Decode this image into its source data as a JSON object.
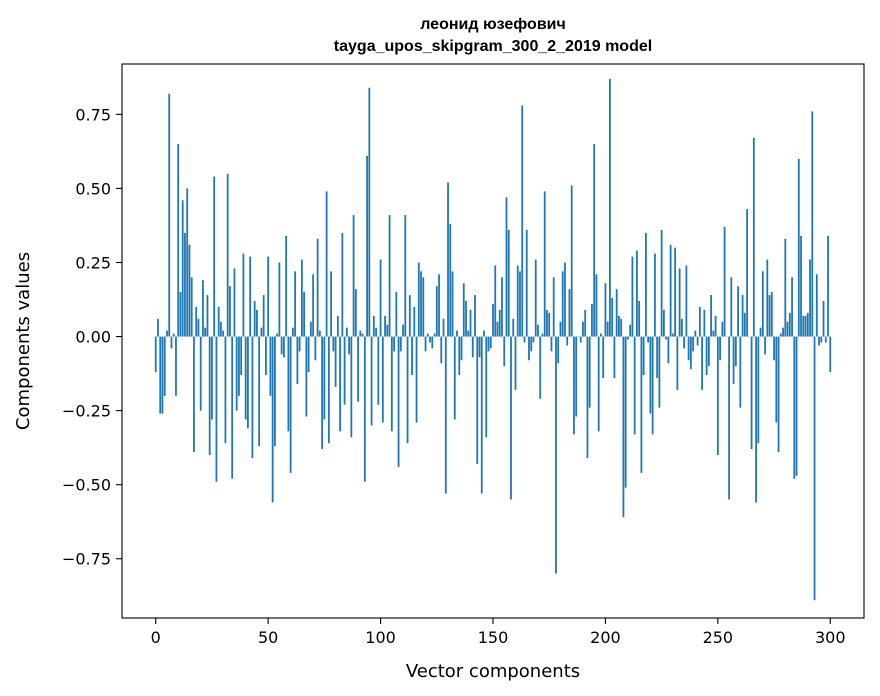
{
  "chart_data": {
    "type": "bar",
    "title_line1": "леонид юзефович",
    "title_line2": "tayga_upos_skipgram_300_2_2019 model",
    "xlabel": "Vector components",
    "ylabel": "Components values",
    "xlim": [
      -15,
      315
    ],
    "ylim": [
      -0.95,
      0.92
    ],
    "x_ticks": [
      0,
      50,
      100,
      150,
      200,
      250,
      300
    ],
    "x_tick_labels": [
      "0",
      "50",
      "100",
      "150",
      "200",
      "250",
      "300"
    ],
    "y_ticks": [
      -0.75,
      -0.5,
      -0.25,
      0.0,
      0.25,
      0.5,
      0.75
    ],
    "y_tick_labels": [
      "−0.75",
      "−0.50",
      "−0.25",
      "0.00",
      "0.25",
      "0.50",
      "0.75"
    ],
    "bar_color": "#1f77b4",
    "grid": false,
    "values": [
      -0.12,
      0.06,
      -0.26,
      -0.26,
      -0.2,
      0.02,
      0.82,
      -0.04,
      0.01,
      -0.2,
      0.65,
      0.15,
      0.46,
      0.35,
      0.5,
      0.31,
      0.2,
      -0.39,
      0.1,
      0.06,
      -0.25,
      0.19,
      0.03,
      0.14,
      -0.4,
      -0.28,
      0.54,
      -0.49,
      0.1,
      0.05,
      0.02,
      -0.36,
      0.55,
      0.17,
      -0.48,
      0.23,
      -0.25,
      -0.2,
      -0.13,
      0.28,
      -0.28,
      -0.31,
      0.27,
      -0.41,
      0.12,
      0.09,
      -0.37,
      0.03,
      0.14,
      -0.13,
      0.27,
      -0.2,
      -0.56,
      -0.37,
      0.01,
      0.25,
      -0.06,
      -0.07,
      0.34,
      -0.32,
      -0.46,
      0.03,
      0.22,
      -0.16,
      -0.05,
      0.26,
      0.15,
      -0.27,
      -0.12,
      0.05,
      0.21,
      -0.08,
      0.33,
      0.02,
      -0.38,
      -0.28,
      0.49,
      -0.36,
      0.22,
      -0.05,
      -0.17,
      0.07,
      -0.32,
      0.35,
      -0.23,
      0.03,
      -0.06,
      -0.34,
      0.41,
      0.16,
      -0.22,
      0.02,
      0.01,
      -0.49,
      0.61,
      0.84,
      -0.3,
      0.07,
      0.03,
      -0.23,
      0.26,
      -0.29,
      0.07,
      0.04,
      0.41,
      -0.32,
      -0.05,
      0.15,
      -0.44,
      -0.05,
      0.04,
      0.41,
      -0.36,
      0.14,
      -0.13,
      0.1,
      -0.29,
      0.25,
      0.22,
      0.2,
      -0.05,
      0.01,
      -0.02,
      -0.04,
      0.01,
      0.17,
      0.21,
      -0.09,
      0.06,
      -0.53,
      0.52,
      0.38,
      0.22,
      -0.28,
      0.02,
      -0.13,
      -0.08,
      0.18,
      0.12,
      0.02,
      0.09,
      -0.07,
      0.14,
      -0.43,
      -0.07,
      -0.53,
      0.02,
      -0.34,
      -0.05,
      -0.04,
      0.11,
      0.24,
      0.05,
      0.09,
      0.2,
      -0.1,
      0.47,
      0.36,
      -0.55,
      0.06,
      -0.18,
      0.24,
      0.22,
      0.78,
      -0.02,
      0.36,
      -0.08,
      -0.05,
      -0.02,
      0.26,
      0.04,
      -0.21,
      0.01,
      0.49,
      0.09,
      0.08,
      -0.05,
      0.2,
      -0.8,
      -0.09,
      0.05,
      0.22,
      0.25,
      -0.03,
      0.16,
      0.51,
      -0.33,
      -0.27,
      0.0,
      -0.02,
      0.05,
      0.09,
      -0.41,
      -0.24,
      0.11,
      0.65,
      0.21,
      -0.32,
      0.01,
      -0.14,
      0.18,
      0.05,
      0.87,
      0.13,
      -0.14,
      0.16,
      0.07,
      0.06,
      -0.61,
      -0.51,
      -0.01,
      0.04,
      0.27,
      -0.33,
      0.29,
      0.12,
      -0.46,
      -0.13,
      0.35,
      -0.02,
      -0.26,
      -0.33,
      0.28,
      -0.14,
      -0.24,
      0.36,
      0.09,
      -0.01,
      -0.09,
      0.31,
      0.01,
      0.3,
      -0.18,
      0.23,
      0.06,
      -0.04,
      0.24,
      -0.08,
      -0.11,
      -0.05,
      0.02,
      -0.03,
      0.1,
      -0.18,
      0.09,
      -0.13,
      -0.1,
      0.14,
      0.02,
      0.07,
      -0.4,
      -0.08,
      0.05,
      0.37,
      0.0,
      -0.55,
      0.2,
      -0.16,
      -0.1,
      0.17,
      -0.24,
      0.14,
      0.08,
      0.43,
      0.0,
      -0.38,
      0.67,
      -0.56,
      -0.36,
      0.03,
      0.22,
      -0.06,
      0.26,
      0.14,
      0.15,
      -0.08,
      -0.29,
      -0.39,
      0.01,
      0.03,
      0.33,
      0.05,
      0.08,
      0.2,
      -0.48,
      -0.47,
      0.6,
      0.34,
      0.07,
      0.07,
      0.08,
      0.26,
      0.76,
      -0.89,
      0.21,
      -0.03,
      -0.02,
      0.12,
      -0.02,
      0.34,
      -0.12
    ]
  }
}
